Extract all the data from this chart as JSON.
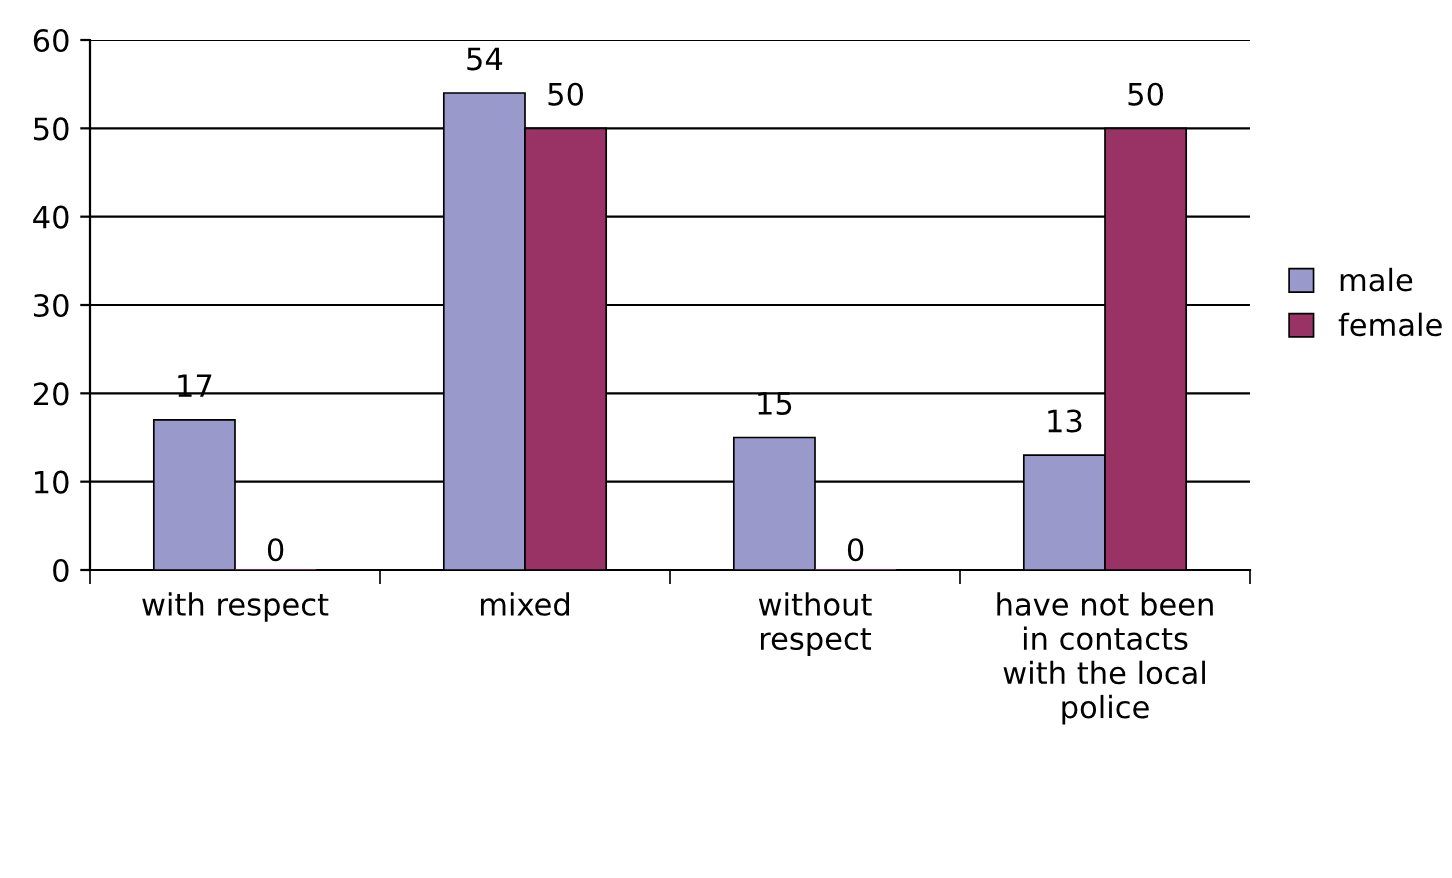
{
  "chart_data": {
    "type": "bar",
    "categories": [
      "with respect",
      "mixed",
      "without respect",
      "have not been in contacts with the local police"
    ],
    "series": [
      {
        "name": "male",
        "color": "#9999cc",
        "values": [
          17,
          54,
          15,
          13
        ]
      },
      {
        "name": "female",
        "color": "#993366",
        "values": [
          0,
          50,
          0,
          50
        ]
      }
    ],
    "ylim": [
      0,
      60
    ],
    "yticks": [
      0,
      10,
      20,
      30,
      40,
      50,
      60
    ],
    "grid": "y",
    "legend": "right",
    "data_labels": true
  }
}
